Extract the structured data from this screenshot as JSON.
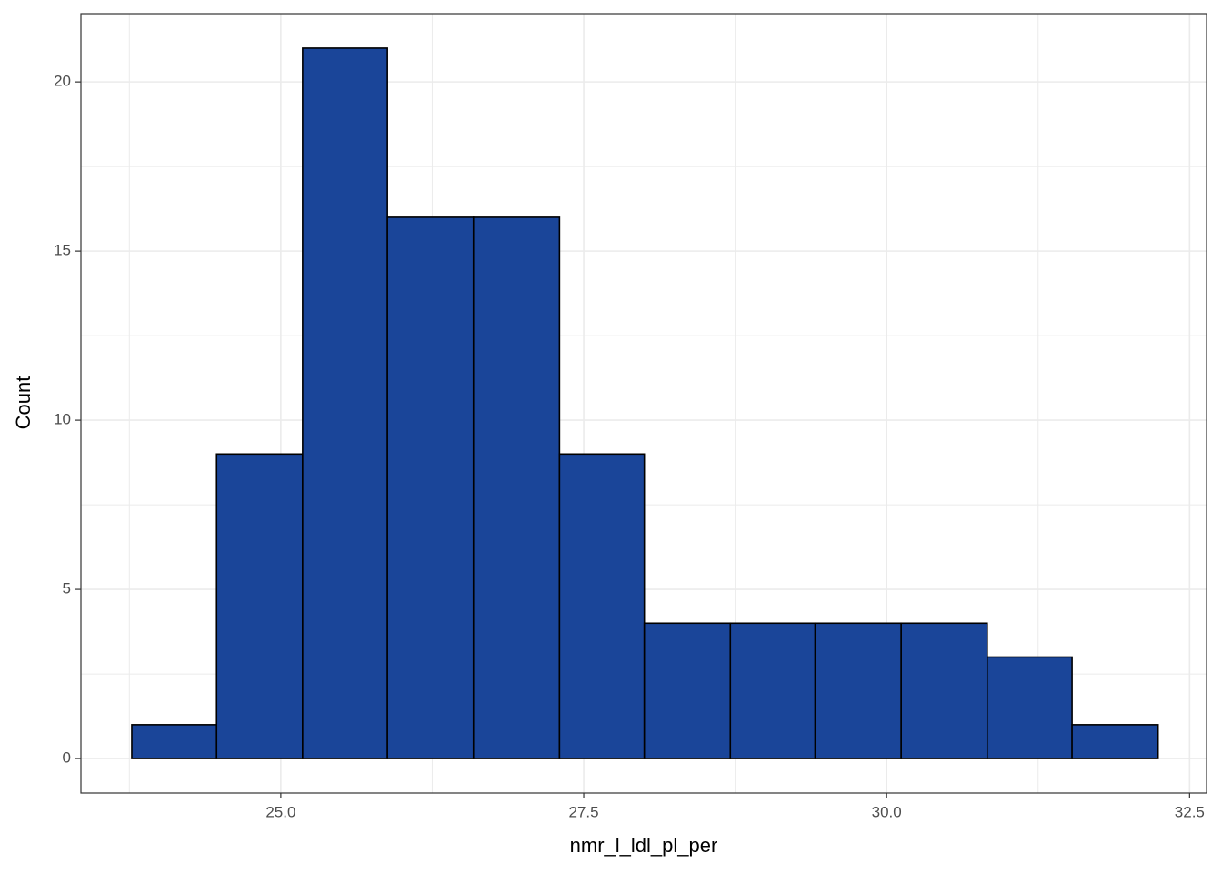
{
  "chart_data": {
    "type": "histogram",
    "x_label": "nmr_l_ldl_pl_per",
    "y_label": "Count",
    "bins": [
      23.77,
      24.47,
      25.18,
      25.88,
      26.59,
      27.3,
      28.0,
      28.71,
      29.41,
      30.12,
      30.83,
      31.53,
      32.24
    ],
    "counts": [
      1,
      9,
      21,
      16,
      16,
      9,
      4,
      4,
      4,
      4,
      3,
      1
    ],
    "color": "#1a4599",
    "edge_color": "#000000",
    "xlim": [
      23.35,
      32.64
    ],
    "ylim": [
      -1.02,
      22.02
    ],
    "xticks": [
      {
        "value": 25,
        "label": "25.0"
      },
      {
        "value": 27.5,
        "label": "27.5"
      },
      {
        "value": 30,
        "label": "30.0"
      },
      {
        "value": 32.5,
        "label": "32.5"
      }
    ],
    "yticks": [
      0,
      5,
      10,
      15,
      20
    ],
    "x_minor_grid": [
      23.75,
      26.25,
      28.75,
      31.25
    ],
    "y_minor_grid": [
      2.5,
      7.5,
      12.5,
      17.5
    ],
    "grid": true
  }
}
